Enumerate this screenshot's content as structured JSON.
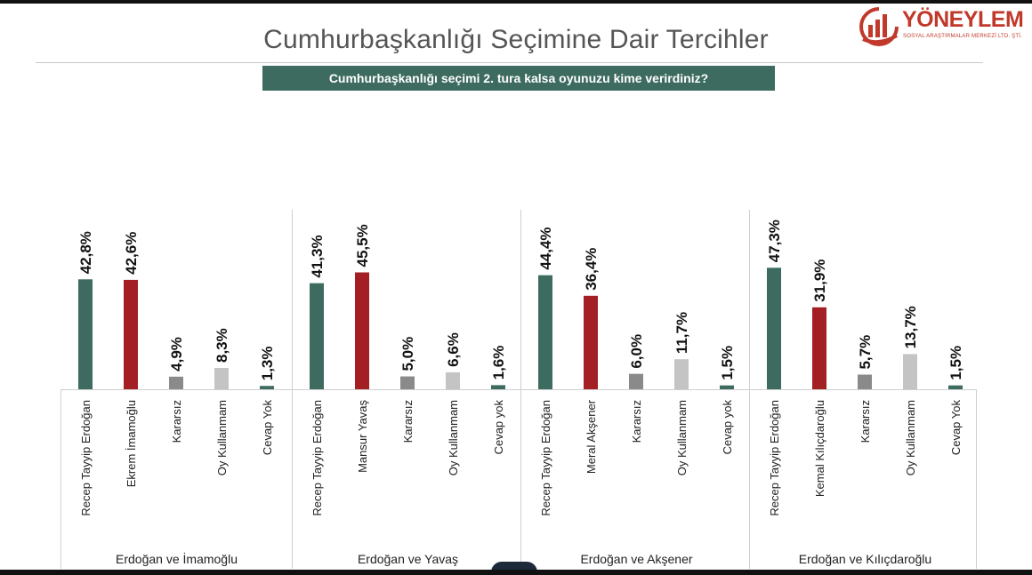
{
  "title": "Cumhurbaşkanlığı Seçimine Dair Tercihler",
  "question": "Cumhurbaşkanlığı seçimi 2. tura kalsa oyunuzu kime verirdiniz?",
  "logo": {
    "name": "YÖNEYLEM",
    "subtitle": "SOSYAL ARAŞTIRMALAR MERKEZİ LTD. ŞTİ.",
    "color": "#c0392b"
  },
  "colors": {
    "green": "#3d6b5f",
    "red": "#a41f24",
    "dark_gray": "#8a8a8a",
    "light_gray": "#c4c4c4",
    "question_bg": "#3d6b5f"
  },
  "chart_data": {
    "type": "bar",
    "ylim": [
      0,
      50
    ],
    "grid": false,
    "groups": [
      {
        "name": "Erdoğan ve İmamoğlu",
        "categories": [
          "Recep Tayyip Erdoğan",
          "Ekrem İmamoğlu",
          "Kararsız",
          "Oy Kullanmam",
          "Cevap Yok"
        ],
        "values": [
          42.8,
          42.6,
          4.9,
          8.3,
          1.3
        ],
        "labels": [
          "42,8%",
          "42,6%",
          "4,9%",
          "8,3%",
          "1,3%"
        ],
        "colors": [
          "#3d6b5f",
          "#a41f24",
          "#8a8a8a",
          "#c4c4c4",
          "#3d6b5f"
        ]
      },
      {
        "name": "Erdoğan ve Yavaş",
        "categories": [
          "Recep Tayyip Erdoğan",
          "Mansur Yavaş",
          "Kararsız",
          "Oy Kullanmam",
          "Cevap yok"
        ],
        "values": [
          41.3,
          45.5,
          5.0,
          6.6,
          1.6
        ],
        "labels": [
          "41,3%",
          "45,5%",
          "5,0%",
          "6,6%",
          "1,6%"
        ],
        "colors": [
          "#3d6b5f",
          "#a41f24",
          "#8a8a8a",
          "#c4c4c4",
          "#3d6b5f"
        ]
      },
      {
        "name": "Erdoğan ve Akşener",
        "categories": [
          "Recep Tayyip Erdoğan",
          "Meral Akşener",
          "Kararsız",
          "Oy Kullanmam",
          "Cevap yok"
        ],
        "values": [
          44.4,
          36.4,
          6.0,
          11.7,
          1.5
        ],
        "labels": [
          "44,4%",
          "36,4%",
          "6,0%",
          "11,7%",
          "1,5%"
        ],
        "colors": [
          "#3d6b5f",
          "#a41f24",
          "#8a8a8a",
          "#c4c4c4",
          "#3d6b5f"
        ]
      },
      {
        "name": "Erdoğan ve Kılıçdaroğlu",
        "categories": [
          "Recep Tayyip Erdoğan",
          "Kemal Kılıçdaroğlu",
          "Kararsız",
          "Oy Kullanmam",
          "Cevap Yok"
        ],
        "values": [
          47.3,
          31.9,
          5.7,
          13.7,
          1.5
        ],
        "labels": [
          "47,3%",
          "31,9%",
          "5,7%",
          "13,7%",
          "1,5%"
        ],
        "colors": [
          "#3d6b5f",
          "#a41f24",
          "#8a8a8a",
          "#c4c4c4",
          "#3d6b5f"
        ]
      }
    ]
  }
}
